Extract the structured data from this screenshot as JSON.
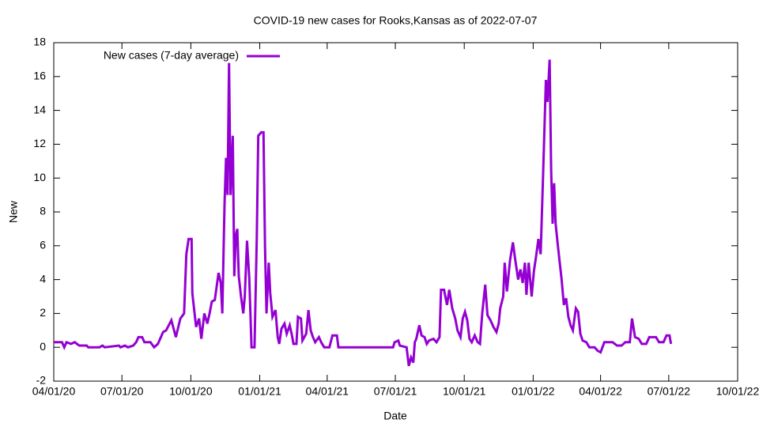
{
  "chart_data": {
    "type": "line",
    "title": "COVID-19 new cases for Rooks,Kansas as of 2022-07-07",
    "x_label": "Date",
    "y_label": "New",
    "legend_position": "top-left",
    "xlim": [
      "2020-04-01",
      "2022-10-01"
    ],
    "xticks": [
      {
        "value": "2020-04-01",
        "label": "04/01/20"
      },
      {
        "value": "2020-07-01",
        "label": "07/01/20"
      },
      {
        "value": "2020-10-01",
        "label": "10/01/20"
      },
      {
        "value": "2021-01-01",
        "label": "01/01/21"
      },
      {
        "value": "2021-04-01",
        "label": "04/01/21"
      },
      {
        "value": "2021-07-01",
        "label": "07/01/21"
      },
      {
        "value": "2021-10-01",
        "label": "10/01/21"
      },
      {
        "value": "2022-01-01",
        "label": "01/01/22"
      },
      {
        "value": "2022-04-01",
        "label": "04/01/22"
      },
      {
        "value": "2022-07-01",
        "label": "07/01/22"
      },
      {
        "value": "2022-10-01",
        "label": "10/01/22"
      }
    ],
    "ylim": [
      -2,
      18
    ],
    "yticks": [
      -2,
      0,
      2,
      4,
      6,
      8,
      10,
      12,
      14,
      16,
      18
    ],
    "x": [
      "2020-04-01",
      "2020-04-12",
      "2020-04-15",
      "2020-04-18",
      "2020-04-24",
      "2020-04-29",
      "2020-05-05",
      "2020-05-15",
      "2020-05-17",
      "2020-06-01",
      "2020-06-05",
      "2020-06-08",
      "2020-06-27",
      "2020-06-29",
      "2020-07-05",
      "2020-07-09",
      "2020-07-16",
      "2020-07-20",
      "2020-07-23",
      "2020-07-28",
      "2020-07-31",
      "2020-08-08",
      "2020-08-13",
      "2020-08-18",
      "2020-08-21",
      "2020-08-25",
      "2020-08-29",
      "2020-09-05",
      "2020-09-11",
      "2020-09-17",
      "2020-09-22",
      "2020-09-25",
      "2020-09-28",
      "2020-10-02",
      "2020-10-03",
      "2020-10-06",
      "2020-10-08",
      "2020-10-12",
      "2020-10-15",
      "2020-10-19",
      "2020-10-23",
      "2020-10-26",
      "2020-10-29",
      "2020-11-02",
      "2020-11-07",
      "2020-11-10",
      "2020-11-12",
      "2020-11-15",
      "2020-11-17",
      "2020-11-19",
      "2020-11-21",
      "2020-11-23",
      "2020-11-26",
      "2020-11-28",
      "2020-11-30",
      "2020-12-02",
      "2020-12-04",
      "2020-12-07",
      "2020-12-10",
      "2020-12-12",
      "2020-12-15",
      "2020-12-18",
      "2020-12-21",
      "2020-12-25",
      "2020-12-28",
      "2020-12-30",
      "2021-01-03",
      "2021-01-06",
      "2021-01-08",
      "2021-01-10",
      "2021-01-13",
      "2021-01-15",
      "2021-01-18",
      "2021-01-22",
      "2021-01-25",
      "2021-01-27",
      "2021-01-30",
      "2021-02-03",
      "2021-02-06",
      "2021-02-10",
      "2021-02-13",
      "2021-02-15",
      "2021-02-19",
      "2021-02-21",
      "2021-02-25",
      "2021-02-27",
      "2021-03-04",
      "2021-03-07",
      "2021-03-10",
      "2021-03-13",
      "2021-03-16",
      "2021-03-21",
      "2021-03-24",
      "2021-03-28",
      "2021-04-04",
      "2021-04-08",
      "2021-04-14",
      "2021-04-16",
      "2021-06-28",
      "2021-06-30",
      "2021-07-05",
      "2021-07-07",
      "2021-07-16",
      "2021-07-19",
      "2021-07-22",
      "2021-07-25",
      "2021-07-27",
      "2021-07-29",
      "2021-08-02",
      "2021-08-05",
      "2021-08-09",
      "2021-08-12",
      "2021-08-15",
      "2021-08-21",
      "2021-08-25",
      "2021-08-29",
      "2021-08-31",
      "2021-09-04",
      "2021-09-08",
      "2021-09-11",
      "2021-09-15",
      "2021-09-19",
      "2021-09-22",
      "2021-09-26",
      "2021-09-29",
      "2021-10-02",
      "2021-10-05",
      "2021-10-08",
      "2021-10-11",
      "2021-10-15",
      "2021-10-19",
      "2021-10-22",
      "2021-10-25",
      "2021-10-29",
      "2021-11-01",
      "2021-11-05",
      "2021-11-09",
      "2021-11-13",
      "2021-11-16",
      "2021-11-18",
      "2021-11-22",
      "2021-11-24",
      "2021-11-27",
      "2021-12-01",
      "2021-12-05",
      "2021-12-08",
      "2021-12-12",
      "2021-12-15",
      "2021-12-18",
      "2021-12-21",
      "2021-12-23",
      "2021-12-26",
      "2021-12-30",
      "2022-01-02",
      "2022-01-05",
      "2022-01-08",
      "2022-01-11",
      "2022-01-14",
      "2022-01-18",
      "2022-01-20",
      "2022-01-23",
      "2022-01-25",
      "2022-01-27",
      "2022-01-29",
      "2022-01-31",
      "2022-02-03",
      "2022-02-06",
      "2022-02-08",
      "2022-02-11",
      "2022-02-14",
      "2022-02-17",
      "2022-02-20",
      "2022-02-23",
      "2022-02-27",
      "2022-03-02",
      "2022-03-05",
      "2022-03-08",
      "2022-03-13",
      "2022-03-17",
      "2022-03-24",
      "2022-03-28",
      "2022-04-01",
      "2022-04-06",
      "2022-04-17",
      "2022-04-23",
      "2022-04-29",
      "2022-05-04",
      "2022-05-10",
      "2022-05-13",
      "2022-05-17",
      "2022-05-22",
      "2022-05-26",
      "2022-06-01",
      "2022-06-05",
      "2022-06-14",
      "2022-06-18",
      "2022-06-24",
      "2022-06-28",
      "2022-07-02",
      "2022-07-04"
    ],
    "series": [
      {
        "name": "New cases (7-day average)",
        "color": "#9400d3",
        "values": [
          0.3,
          0.3,
          0,
          0.3,
          0.2,
          0.3,
          0.1,
          0.1,
          0,
          0,
          0.1,
          0,
          0.1,
          0,
          0.1,
          0,
          0.1,
          0.3,
          0.6,
          0.6,
          0.3,
          0.3,
          0,
          0.2,
          0.5,
          0.9,
          1.0,
          1.6,
          0.6,
          1.7,
          2.0,
          5.5,
          6.4,
          6.4,
          3.2,
          2.0,
          1.2,
          1.7,
          0.5,
          2.0,
          1.4,
          2.0,
          2.7,
          2.8,
          4.4,
          3.8,
          2.0,
          8.5,
          11.2,
          9.0,
          16.8,
          9.0,
          12.5,
          4.2,
          6.6,
          7.0,
          4.2,
          3.0,
          2.0,
          3.0,
          6.3,
          4.1,
          0,
          0,
          6.4,
          12.5,
          12.7,
          12.7,
          6.0,
          2.0,
          5.0,
          3.2,
          1.8,
          2.2,
          0.6,
          0.2,
          1.1,
          1.4,
          0.8,
          1.3,
          0.7,
          0.2,
          0.2,
          1.8,
          1.7,
          0.4,
          0.8,
          2.2,
          1.0,
          0.6,
          0.3,
          0.6,
          0.3,
          0,
          0,
          0.7,
          0.7,
          0,
          0,
          0.3,
          0.4,
          0.1,
          0,
          -1.1,
          -0.6,
          -0.9,
          0.3,
          0.5,
          1.3,
          0.7,
          0.6,
          0.2,
          0.4,
          0.5,
          0.3,
          0.6,
          3.4,
          3.4,
          2.5,
          3.4,
          2.3,
          1.7,
          1.0,
          0.6,
          1.7,
          2.1,
          1.6,
          0.5,
          0.3,
          0.7,
          0.3,
          0.2,
          2.0,
          3.7,
          1.9,
          1.6,
          1.2,
          0.9,
          1.4,
          2.3,
          3.0,
          5.0,
          3.3,
          5.1,
          6.2,
          5.2,
          4.0,
          4.6,
          3.8,
          5.0,
          3.1,
          5.0,
          3.0,
          4.5,
          5.4,
          6.4,
          5.5,
          9.8,
          15.8,
          14.5,
          17.0,
          10.5,
          7.3,
          9.7,
          7.3,
          6.0,
          4.8,
          4.0,
          2.5,
          2.9,
          1.8,
          1.3,
          1.0,
          2.3,
          2.1,
          0.8,
          0.4,
          0.3,
          0,
          0,
          -0.2,
          -0.3,
          0.3,
          0.3,
          0.1,
          0.1,
          0.3,
          0.3,
          1.7,
          0.6,
          0.5,
          0.2,
          0.2,
          0.6,
          0.6,
          0.3,
          0.3,
          0.7,
          0.7,
          0.2
        ]
      }
    ]
  }
}
